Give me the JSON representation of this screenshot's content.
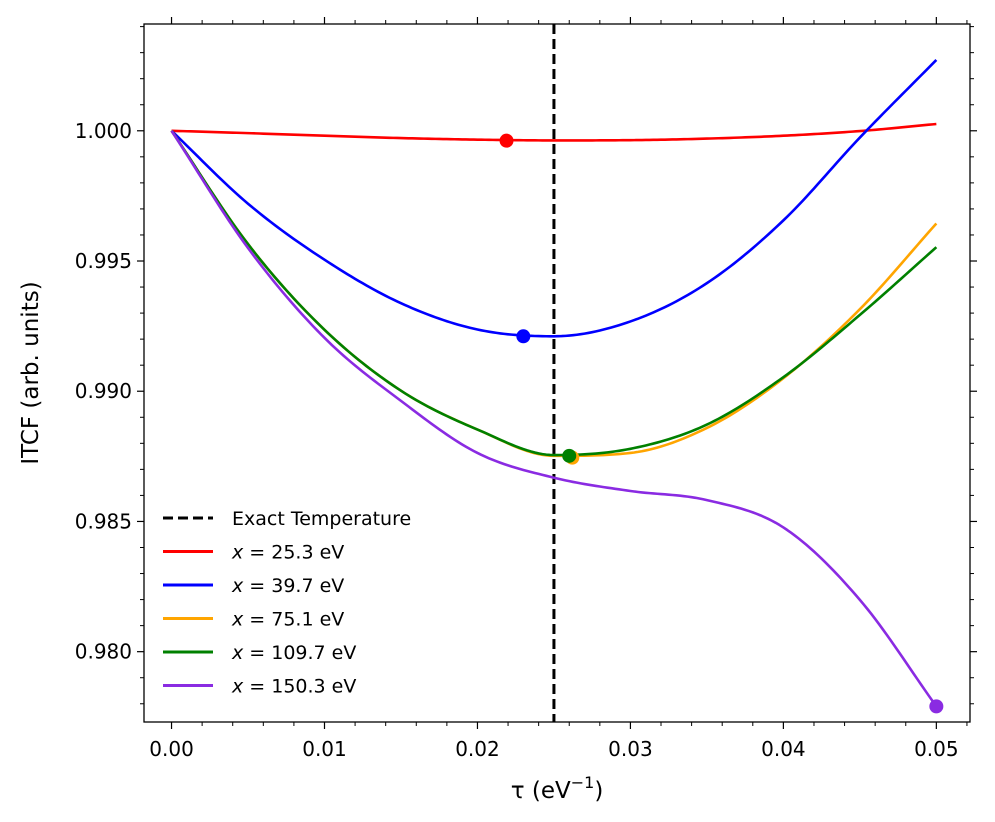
{
  "chart_data": {
    "type": "line",
    "title": "",
    "xlabel": {
      "main": "τ (eV",
      "sup": "−1",
      "tail": ")"
    },
    "ylabel": "ITCF (arb. units)",
    "xlim": [
      -0.0018,
      0.0522
    ],
    "ylim": [
      0.9773,
      1.0041
    ],
    "x_ticks": [
      0.0,
      0.01,
      0.02,
      0.03,
      0.04,
      0.05
    ],
    "x_tick_labels": [
      "0.00",
      "0.01",
      "0.02",
      "0.03",
      "0.04",
      "0.05"
    ],
    "x_minor_step": 0.002,
    "y_ticks": [
      0.98,
      0.985,
      0.99,
      0.995,
      1.0
    ],
    "y_tick_labels": [
      "0.980",
      "0.985",
      "0.990",
      "0.995",
      "1.000"
    ],
    "y_minor_step": 0.001,
    "grid": false,
    "legend_position": "lower-left",
    "reference_line": {
      "name": "Exact Temperature",
      "x": 0.025,
      "color": "#000000",
      "style": "dashed"
    },
    "series": [
      {
        "name": "x = 25.3 eV",
        "var": "x",
        "rest": " = 25.3 eV",
        "color": "#ff0000",
        "x": [
          0.0,
          0.005,
          0.01,
          0.015,
          0.02,
          0.025,
          0.03,
          0.035,
          0.04,
          0.045,
          0.05
        ],
        "y": [
          1.0,
          0.99991,
          0.99981,
          0.99972,
          0.99966,
          0.99963,
          0.99964,
          0.9997,
          0.99981,
          0.99999,
          1.00026
        ],
        "marker": {
          "x": 0.0219,
          "y": 0.99962
        }
      },
      {
        "name": "x = 39.7 eV",
        "var": "x",
        "rest": " = 39.7 eV",
        "color": "#0000ff",
        "x": [
          0.0,
          0.005,
          0.01,
          0.015,
          0.02,
          0.025,
          0.03,
          0.035,
          0.04,
          0.045,
          0.05
        ],
        "y": [
          1.0,
          0.9972,
          0.99505,
          0.99338,
          0.99237,
          0.99211,
          0.99268,
          0.99415,
          0.99656,
          0.99974,
          1.00272
        ],
        "marker": {
          "x": 0.023,
          "y": 0.99211
        }
      },
      {
        "name": "x = 75.1 eV",
        "var": "x",
        "rest": " = 75.1 eV",
        "color": "#ffa500",
        "x": [
          0.0,
          0.005,
          0.01,
          0.015,
          0.02,
          0.025,
          0.03,
          0.035,
          0.04,
          0.045,
          0.05
        ],
        "y": [
          1.0,
          0.99565,
          0.99236,
          0.99002,
          0.98853,
          0.98752,
          0.98763,
          0.98859,
          0.9905,
          0.99315,
          0.99644
        ],
        "marker": {
          "x": 0.0262,
          "y": 0.98745
        }
      },
      {
        "name": "x = 109.7 eV",
        "var": "x",
        "rest": " = 109.7 eV",
        "color": "#008000",
        "x": [
          0.0,
          0.005,
          0.01,
          0.015,
          0.02,
          0.025,
          0.03,
          0.035,
          0.04,
          0.045,
          0.05
        ],
        "y": [
          1.0,
          0.99565,
          0.99236,
          0.99002,
          0.98853,
          0.98755,
          0.98779,
          0.98872,
          0.99054,
          0.99293,
          0.99553
        ],
        "marker": {
          "x": 0.026,
          "y": 0.98752
        }
      },
      {
        "name": "x = 150.3 eV",
        "var": "x",
        "rest": " = 150.3 eV",
        "color": "#8a2be2",
        "x": [
          0.0,
          0.005,
          0.01,
          0.015,
          0.02,
          0.025,
          0.03,
          0.035,
          0.04,
          0.045,
          0.05
        ],
        "y": [
          1.0,
          0.9955,
          0.99205,
          0.98963,
          0.98763,
          0.98668,
          0.98617,
          0.98582,
          0.98477,
          0.98199,
          0.9779
        ],
        "marker": {
          "x": 0.05,
          "y": 0.9779
        }
      }
    ]
  }
}
